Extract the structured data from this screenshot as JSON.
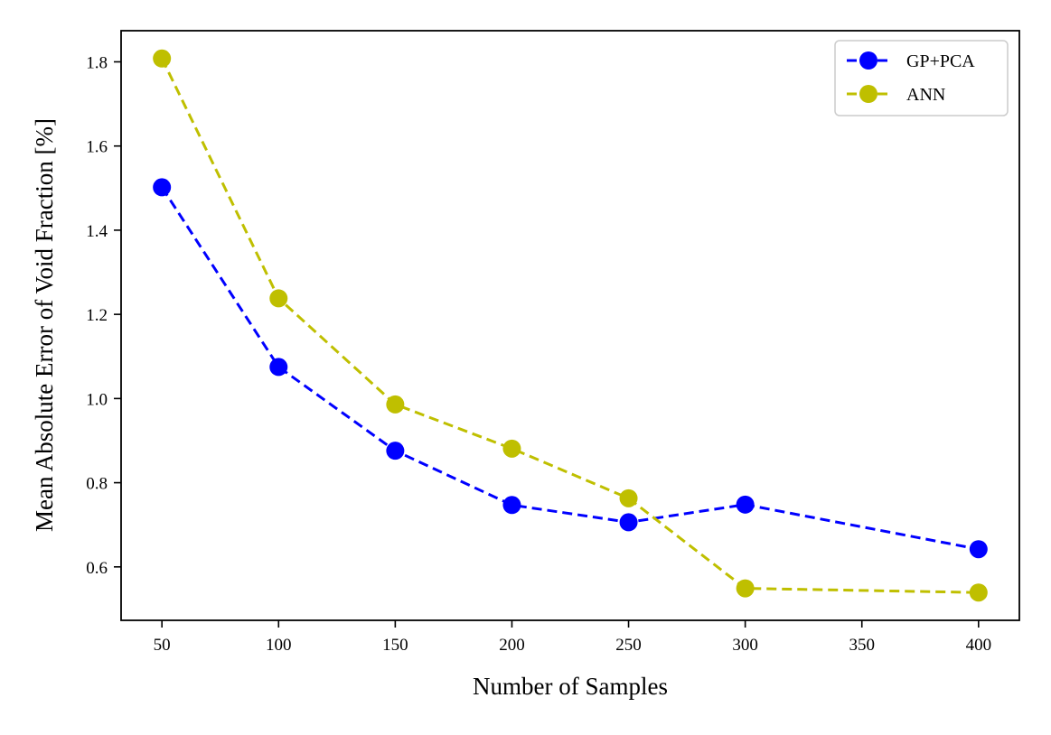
{
  "chart_data": {
    "type": "line",
    "title": "",
    "xlabel": "Number of Samples",
    "ylabel": "Mean Absolute Error of Void Fraction [%]",
    "x": [
      50,
      100,
      150,
      200,
      250,
      300,
      400
    ],
    "xticks": [
      "50",
      "100",
      "150",
      "200",
      "250",
      "300",
      "350",
      "400"
    ],
    "xtick_values": [
      50,
      100,
      150,
      200,
      250,
      300,
      350,
      400
    ],
    "yticks": [
      "0.6",
      "0.8",
      "1.0",
      "1.2",
      "1.4",
      "1.6",
      "1.8"
    ],
    "ytick_values": [
      0.6,
      0.8,
      1.0,
      1.2,
      1.4,
      1.6,
      1.8
    ],
    "xlim": [
      32.5,
      417.5
    ],
    "ylim": [
      0.473,
      1.874
    ],
    "legend_position": "top-right",
    "grid": false,
    "series": [
      {
        "name": "GP+PCA",
        "color": "#0000ff",
        "linestyle": "dashed",
        "marker": "circle",
        "values": [
          1.502,
          1.075,
          0.876,
          0.747,
          0.706,
          0.748,
          0.642
        ]
      },
      {
        "name": "ANN",
        "color": "#bfbf00",
        "linestyle": "dashed",
        "marker": "circle",
        "values": [
          1.808,
          1.238,
          0.986,
          0.881,
          0.763,
          0.549,
          0.539
        ]
      }
    ]
  }
}
